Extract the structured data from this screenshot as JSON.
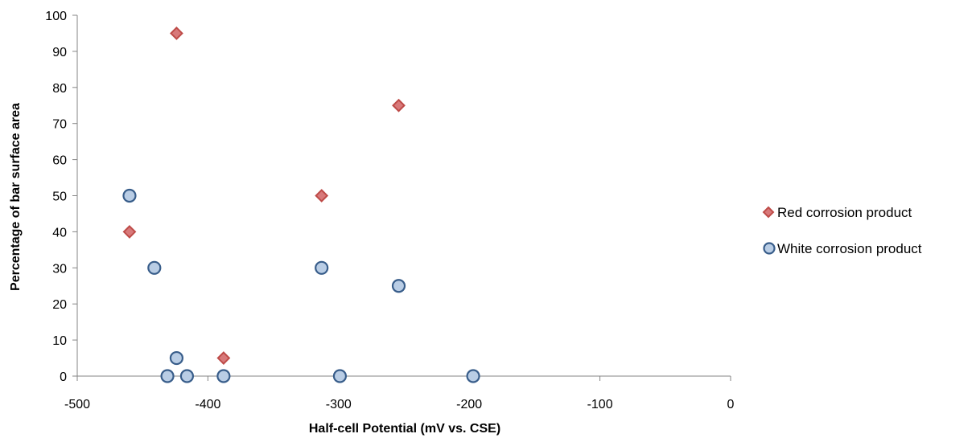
{
  "chart_data": {
    "type": "scatter",
    "title": "",
    "xlabel": "Half-cell Potential (mV vs. CSE)",
    "ylabel": "Percentage of bar surface area",
    "xlim": [
      -500,
      0
    ],
    "ylim": [
      0,
      100
    ],
    "x_ticks": [
      -500,
      -400,
      -300,
      -200,
      -100,
      0
    ],
    "y_ticks": [
      0,
      10,
      20,
      30,
      40,
      50,
      60,
      70,
      80,
      90,
      100
    ],
    "grid": false,
    "legend_position": "right",
    "series": [
      {
        "name": "Red corrosion product",
        "marker": "diamond",
        "fill_color": "#d8797a",
        "stroke_color": "#be4b48",
        "points": [
          {
            "x": -460,
            "y": 40
          },
          {
            "x": -424,
            "y": 95
          },
          {
            "x": -388,
            "y": 5
          },
          {
            "x": -313,
            "y": 50
          },
          {
            "x": -254,
            "y": 75
          }
        ]
      },
      {
        "name": "White corrosion product",
        "marker": "circle",
        "fill_color": "#b9cde5",
        "stroke_color": "#385d8a",
        "points": [
          {
            "x": -460,
            "y": 50
          },
          {
            "x": -441,
            "y": 30
          },
          {
            "x": -431,
            "y": 0
          },
          {
            "x": -424,
            "y": 5
          },
          {
            "x": -416,
            "y": 0
          },
          {
            "x": -388,
            "y": 0
          },
          {
            "x": -313,
            "y": 30
          },
          {
            "x": -299,
            "y": 0
          },
          {
            "x": -254,
            "y": 25
          },
          {
            "x": -197,
            "y": 0
          }
        ]
      }
    ]
  }
}
